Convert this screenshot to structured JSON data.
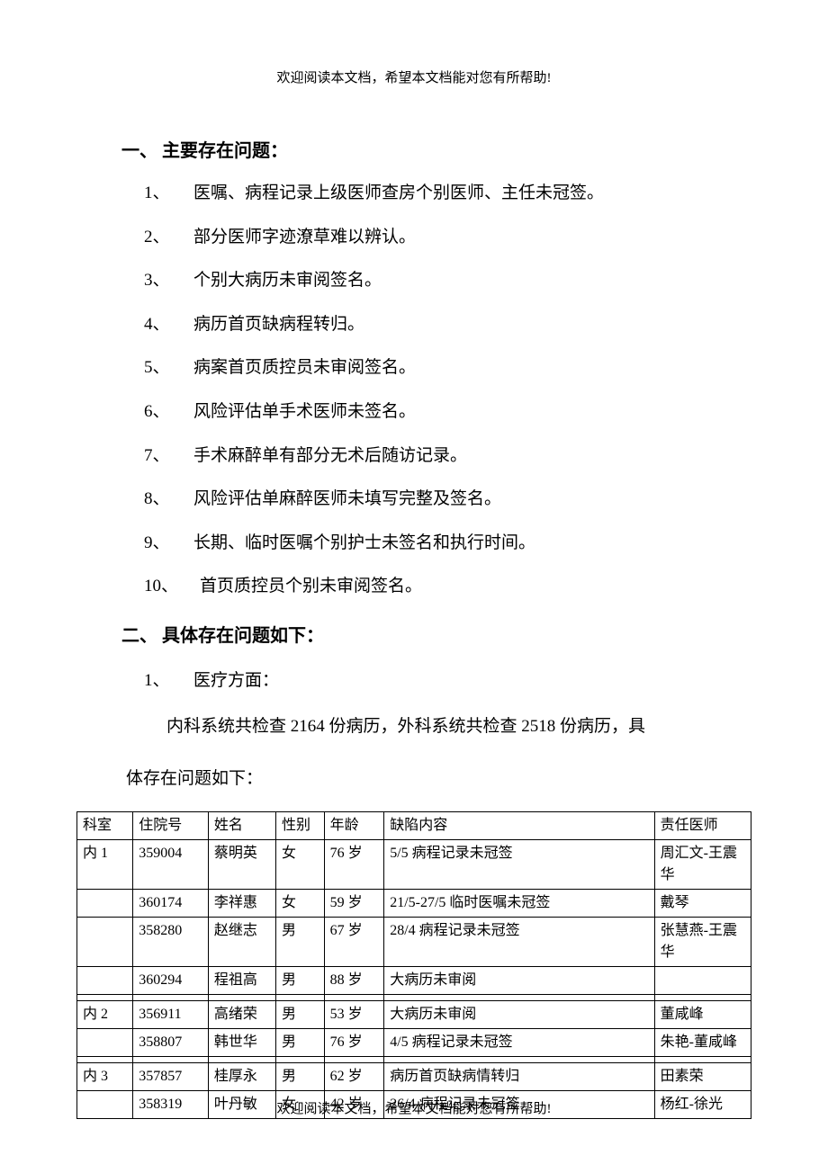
{
  "header_note": "欢迎阅读本文档，希望本文档能对您有所帮助!",
  "footer_note": "欢迎阅读本文档，希望本文档能对您有所帮助!",
  "section1": {
    "heading": "一、 主要存在问题：",
    "items": [
      {
        "num": "1、",
        "text": "医嘱、病程记录上级医师查房个别医师、主任未冠签。"
      },
      {
        "num": "2、",
        "text": "部分医师字迹潦草难以辨认。"
      },
      {
        "num": "3、",
        "text": "个别大病历未审阅签名。"
      },
      {
        "num": "4、",
        "text": "病历首页缺病程转归。"
      },
      {
        "num": "5、",
        "text": "病案首页质控员未审阅签名。"
      },
      {
        "num": "6、",
        "text": "风险评估单手术医师未签名。"
      },
      {
        "num": "7、",
        "text": "手术麻醉单有部分无术后随访记录。"
      },
      {
        "num": "8、",
        "text": "风险评估单麻醉医师未填写完整及签名。"
      },
      {
        "num": "9、",
        "text": "长期、临时医嘱个别护士未签名和执行时间。"
      },
      {
        "num": "10、",
        "text": "首页质控员个别未审阅签名。"
      }
    ]
  },
  "section2": {
    "heading": "二、 具体存在问题如下：",
    "sub_num": "1、",
    "sub_text": "医疗方面：",
    "paragraph1": "内科系统共检查 2164 份病历，外科系统共检查 2518 份病历，具",
    "paragraph2": "体存在问题如下："
  },
  "table": {
    "headers": {
      "dept": "科室",
      "num": "住院号",
      "name": "姓名",
      "gender": "性别",
      "age": "年龄",
      "defect": "缺陷内容",
      "doctor": "责任医师"
    },
    "rows": [
      {
        "dept": "内 1",
        "num": "359004",
        "name": "蔡明英",
        "gender": "女",
        "age": "76 岁",
        "defect": "5/5 病程记录未冠签",
        "doctor": "周汇文-王震华"
      },
      {
        "dept": "",
        "num": "360174",
        "name": "李祥惠",
        "gender": "女",
        "age": "59 岁",
        "defect": "21/5-27/5 临时医嘱未冠签",
        "doctor": "戴琴"
      },
      {
        "dept": "",
        "num": "358280",
        "name": "赵继志",
        "gender": "男",
        "age": "67 岁",
        "defect": "28/4 病程记录未冠签",
        "doctor": "张慧燕-王震华"
      },
      {
        "dept": "",
        "num": "360294",
        "name": "程祖高",
        "gender": "男",
        "age": "88 岁",
        "defect": "大病历未审阅",
        "doctor": ""
      },
      {
        "dept": "",
        "num": "",
        "name": "",
        "gender": "",
        "age": "",
        "defect": "",
        "doctor": ""
      },
      {
        "dept": "内 2",
        "num": "356911",
        "name": "高绪荣",
        "gender": "男",
        "age": "53 岁",
        "defect": "大病历未审阅",
        "doctor": "董咸峰"
      },
      {
        "dept": "",
        "num": "358807",
        "name": "韩世华",
        "gender": "男",
        "age": "76 岁",
        "defect": "4/5 病程记录未冠签",
        "doctor": "朱艳-董咸峰"
      },
      {
        "dept": "",
        "num": "",
        "name": "",
        "gender": "",
        "age": "",
        "defect": "",
        "doctor": ""
      },
      {
        "dept": "内 3",
        "num": "357857",
        "name": "桂厚永",
        "gender": "男",
        "age": "62 岁",
        "defect": "病历首页缺病情转归",
        "doctor": "田素荣"
      },
      {
        "dept": "",
        "num": "358319",
        "name": "叶丹敏",
        "gender": "女",
        "age": "42 岁",
        "defect": "26/4 病程记录未冠签",
        "doctor": "杨红-徐光"
      }
    ]
  }
}
